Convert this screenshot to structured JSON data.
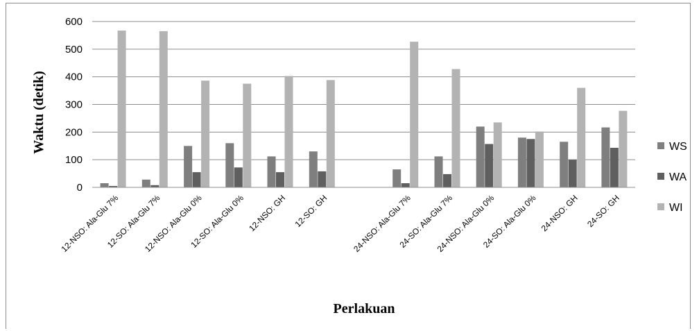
{
  "chart_data": {
    "type": "bar",
    "title": "",
    "xlabel": "Perlakuan",
    "ylabel": "Waktu (detik)",
    "ylim": [
      0,
      600
    ],
    "yticks": [
      0,
      100,
      200,
      300,
      400,
      500,
      600
    ],
    "grid": true,
    "legend_position": "right",
    "categories": [
      "12-NSO: Ala-Glu 7%",
      "12-SO: Ala-Glu 7%",
      "12-NSO: Ala-Glu 0%",
      "12-SO: Ala-Glu 0%",
      "12-NSO: GH",
      "12-SO: GH",
      "",
      "24-NSO: Ala-Glu 7%",
      "24-SO: Ala-Glu 7%",
      "24-NSO: Ala-Glu 0%",
      "24-SO: Ala-Glu 0%",
      "24-NSO: GH",
      "24-SO: GH"
    ],
    "series": [
      {
        "name": "WS",
        "color": "#7f7f7f",
        "values": [
          15,
          28,
          150,
          160,
          112,
          130,
          null,
          65,
          112,
          220,
          180,
          165,
          217
        ]
      },
      {
        "name": "WA",
        "color": "#5f5f5f",
        "values": [
          5,
          8,
          55,
          72,
          55,
          58,
          null,
          15,
          48,
          157,
          175,
          100,
          143
        ]
      },
      {
        "name": "WI",
        "color": "#b3b3b3",
        "values": [
          567,
          565,
          386,
          375,
          403,
          388,
          null,
          527,
          428,
          235,
          202,
          360,
          277
        ]
      }
    ]
  }
}
